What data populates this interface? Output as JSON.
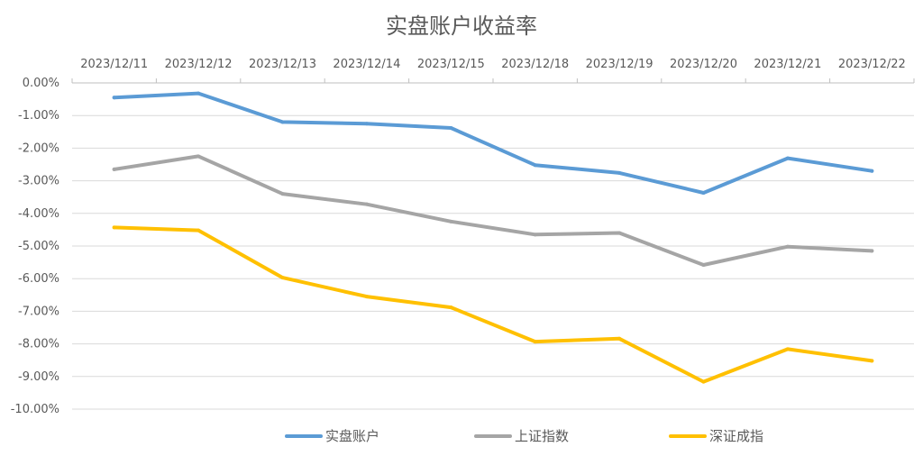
{
  "chart_data": {
    "type": "line",
    "title": "实盘账户收益率",
    "xlabel": "",
    "ylabel": "",
    "categories": [
      "2023/12/11",
      "2023/12/12",
      "2023/12/13",
      "2023/12/14",
      "2023/12/15",
      "2023/12/18",
      "2023/12/19",
      "2023/12/20",
      "2023/12/21",
      "2023/12/22"
    ],
    "y_ticks": [
      "0.00%",
      "-1.00%",
      "-2.00%",
      "-3.00%",
      "-4.00%",
      "-5.00%",
      "-6.00%",
      "-7.00%",
      "-8.00%",
      "-9.00%",
      "-10.00%"
    ],
    "ylim": [
      -10,
      0
    ],
    "x_axis_position": "top",
    "grid": true,
    "legend_position": "bottom",
    "series": [
      {
        "name": "实盘账户",
        "color": "#5b9bd5",
        "values": [
          -0.45,
          -0.32,
          -1.2,
          -1.25,
          -1.38,
          -2.52,
          -2.76,
          -3.37,
          -2.31,
          -2.7
        ]
      },
      {
        "name": "上证指数",
        "color": "#a5a5a5",
        "values": [
          -2.65,
          -2.25,
          -3.4,
          -3.72,
          -4.25,
          -4.65,
          -4.6,
          -5.58,
          -5.02,
          -5.15
        ]
      },
      {
        "name": "深证成指",
        "color": "#ffc000",
        "values": [
          -4.43,
          -4.52,
          -5.97,
          -6.55,
          -6.88,
          -7.93,
          -7.84,
          -9.16,
          -8.16,
          -8.52
        ]
      }
    ]
  }
}
